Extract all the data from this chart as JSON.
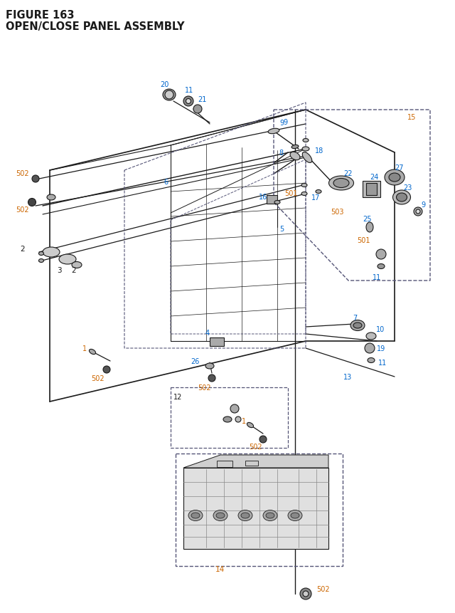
{
  "title_line1": "FIGURE 163",
  "title_line2": "OPEN/CLOSE PANEL ASSEMBLY",
  "bg_color": "#ffffff",
  "title_color": "#1a1a2e",
  "OC": "#cc6600",
  "BL": "#0066cc",
  "DK": "#1a1a1a",
  "GR": "#888888",
  "figsize": [
    6.4,
    8.62
  ],
  "dpi": 100
}
